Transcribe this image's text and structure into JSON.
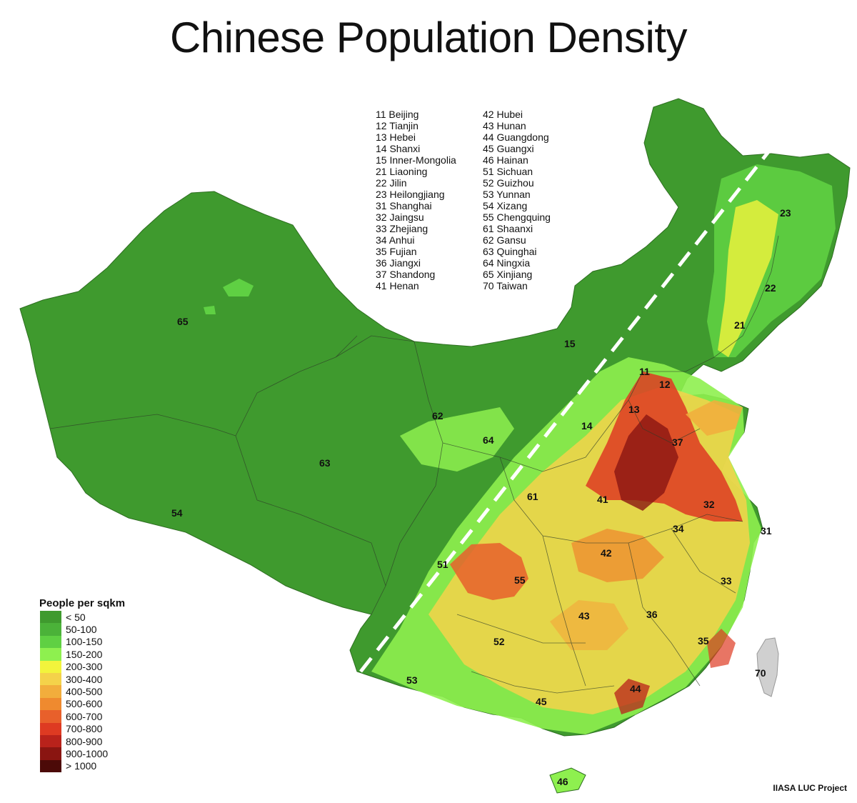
{
  "title": "Chinese Population Density",
  "credit": "IIASA LUC Project",
  "legend": {
    "title": "People per sqkm",
    "items": [
      {
        "label": "< 50",
        "color": "#3f9a2e"
      },
      {
        "label": "50-100",
        "color": "#4bb239"
      },
      {
        "label": "100-150",
        "color": "#5fd043"
      },
      {
        "label": "150-200",
        "color": "#8ef04f"
      },
      {
        "label": "200-300",
        "color": "#f2f43c"
      },
      {
        "label": "300-400",
        "color": "#f4d24a"
      },
      {
        "label": "400-500",
        "color": "#f2ad3c"
      },
      {
        "label": "500-600",
        "color": "#ef8a2f"
      },
      {
        "label": "600-700",
        "color": "#e8602b"
      },
      {
        "label": "700-800",
        "color": "#de3a22"
      },
      {
        "label": "800-900",
        "color": "#b9221b"
      },
      {
        "label": "900-1000",
        "color": "#8a1511"
      },
      {
        "label": "> 1000",
        "color": "#4c0a08"
      }
    ]
  },
  "province_key": {
    "col1": [
      "11 Beijing",
      "12 Tianjin",
      "13 Hebei",
      "14 Shanxi",
      "15 Inner-Mongolia",
      "21 Liaoning",
      "22 Jilin",
      "23 Heilongjiang",
      "31 Shanghai",
      "32 Jaingsu",
      "33 Zhejiang",
      "34 Anhui",
      "35 Fujian",
      "36 Jiangxi",
      "37 Shandong",
      "41 Henan"
    ],
    "col2": [
      "42 Hubei",
      "43 Hunan",
      "44 Guangdong",
      "45 Guangxi",
      "46 Hainan",
      "51 Sichuan",
      "52 Guizhou",
      "53 Yunnan",
      "54 Xizang",
      "55 Chengquing",
      "61 Shaanxi",
      "62 Gansu",
      "63 Quinghai",
      "64 Ningxia",
      "65 Xinjiang",
      "70 Taiwan"
    ]
  },
  "map_labels": [
    "65",
    "15",
    "23",
    "22",
    "21",
    "11",
    "12",
    "13",
    "14",
    "37",
    "62",
    "64",
    "63",
    "54",
    "61",
    "41",
    "32",
    "31",
    "34",
    "42",
    "51",
    "55",
    "33",
    "43",
    "36",
    "52",
    "35",
    "70",
    "53",
    "44",
    "45",
    "46"
  ]
}
